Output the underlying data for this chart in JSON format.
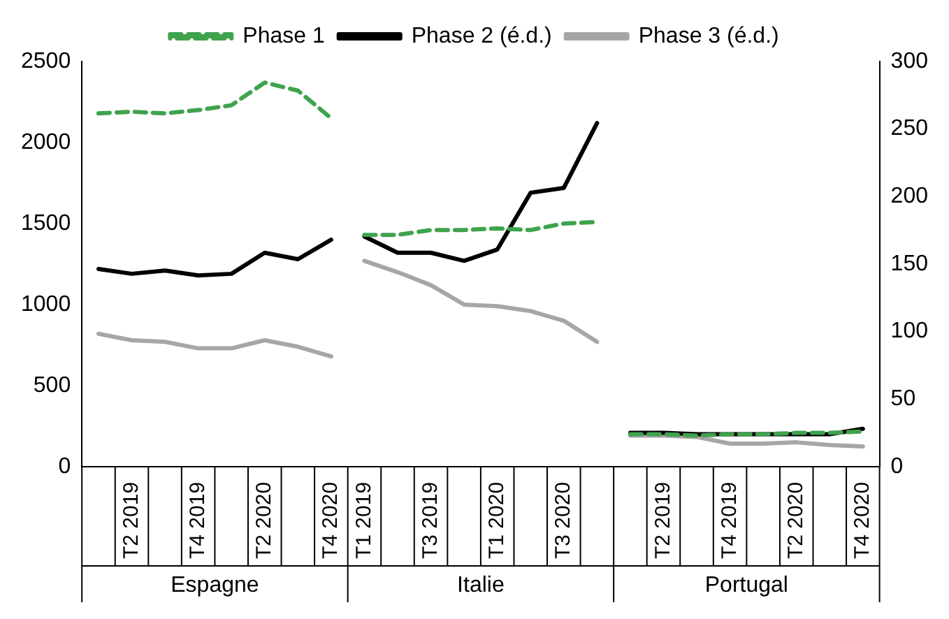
{
  "chart_data": {
    "type": "line",
    "categories": [
      null,
      "T2 2019",
      null,
      "T4 2019",
      null,
      "T2 2020",
      null,
      "T4 2020",
      "T1 2019",
      null,
      "T3 2019",
      null,
      "T1 2020",
      null,
      "T3 2020",
      null,
      null,
      "T2 2019",
      null,
      "T4 2019",
      null,
      "T2 2020",
      null,
      "T4 2020"
    ],
    "series": [
      {
        "name": "Phase 1",
        "color": "#3fa34d",
        "line_style": "dashed",
        "values": [
          2180,
          2190,
          2180,
          2200,
          2230,
          2370,
          2320,
          2150,
          null,
          null,
          null,
          null,
          null,
          null,
          null,
          null,
          null,
          null,
          null,
          null,
          null,
          null,
          null,
          null
        ]
      },
      {
        "name": "Phase 2 (é.d.)",
        "color": "#000000",
        "values": [
          1220,
          1190,
          1210,
          1180,
          1190,
          1320,
          1280,
          1400,
          null,
          null,
          null,
          null,
          null,
          null,
          null,
          null,
          null,
          null,
          null,
          null,
          null,
          null,
          null,
          null
        ]
      },
      {
        "name": "Phase 3 (é.d.)",
        "color": "#a6a6a6",
        "values": [
          820,
          780,
          770,
          730,
          730,
          780,
          740,
          680,
          null,
          null,
          null,
          null,
          null,
          null,
          null,
          null,
          null,
          null,
          null,
          null,
          null,
          null,
          null,
          null
        ]
      },
      {
        "color": "#3fa34d",
        "line_style": "dashed",
        "values": [
          null,
          null,
          null,
          null,
          null,
          null,
          null,
          null,
          1430,
          1430,
          1460,
          1460,
          1470,
          1460,
          1500,
          1510,
          null,
          null,
          null,
          null,
          null,
          null,
          null,
          null
        ]
      },
      {
        "color": "#000000",
        "values": [
          null,
          null,
          null,
          null,
          null,
          null,
          null,
          null,
          1420,
          1320,
          1320,
          1270,
          1340,
          1690,
          1720,
          2120,
          null,
          null,
          null,
          null,
          null,
          null,
          null,
          null
        ]
      },
      {
        "color": "#a6a6a6",
        "values": [
          null,
          null,
          null,
          null,
          null,
          null,
          null,
          null,
          1270,
          1200,
          1120,
          1000,
          990,
          960,
          900,
          770,
          null,
          null,
          null,
          null,
          null,
          null,
          null,
          null
        ]
      },
      {
        "color": "#3fa34d",
        "line_style": "dashed",
        "axis": "y2",
        "values": [
          null,
          null,
          null,
          null,
          null,
          null,
          null,
          null,
          null,
          null,
          null,
          null,
          null,
          null,
          null,
          null,
          24,
          24,
          23,
          24,
          24,
          25,
          25,
          26
        ]
      },
      {
        "color": "#000000",
        "axis": "y2",
        "values": [
          null,
          null,
          null,
          null,
          null,
          null,
          null,
          null,
          null,
          null,
          null,
          null,
          null,
          null,
          null,
          null,
          25,
          25,
          24,
          24,
          24,
          24,
          24,
          28
        ]
      },
      {
        "color": "#a6a6a6",
        "axis": "y2",
        "values": [
          null,
          null,
          null,
          null,
          null,
          null,
          null,
          null,
          null,
          null,
          null,
          null,
          null,
          null,
          null,
          null,
          23,
          23,
          22,
          17,
          17,
          18,
          16,
          15
        ]
      }
    ],
    "ylim": [
      0,
      2500
    ],
    "yticks": [
      0,
      500,
      1000,
      1500,
      2000,
      2500
    ],
    "y2lim": [
      0,
      300
    ],
    "y2ticks": [
      0,
      50,
      100,
      150,
      200,
      250,
      300
    ],
    "annotations": [
      "Espagne",
      "Italie",
      "Portugal"
    ],
    "grid": false,
    "legend": "top",
    "marker": "none"
  }
}
